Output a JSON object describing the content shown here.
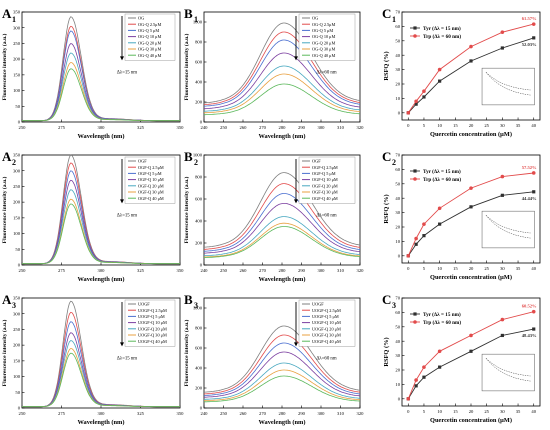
{
  "chart_data": [
    {
      "panel": "A1",
      "panel_label": "A",
      "panel_sub": "1",
      "type": "line",
      "xlabel": "Wavelength (nm)",
      "ylabel": "Fluorescence intensity (a.u.)",
      "xlim": [
        250,
        350
      ],
      "ylim": [
        0,
        350
      ],
      "xticks": [
        250,
        275,
        300,
        325,
        350
      ],
      "yticks": [
        0,
        50,
        100,
        150,
        200,
        250,
        300,
        350
      ],
      "annotation": "Δλ=15 nm",
      "legend_position": "top-right",
      "series": [
        {
          "name": "OG",
          "peak": 330,
          "color": "#7f7f7f"
        },
        {
          "name": "OG-Q 2.5μM",
          "peak": 300,
          "color": "#e24b4b"
        },
        {
          "name": "OG-Q 5 μM",
          "peak": 285,
          "color": "#4a6fd0"
        },
        {
          "name": "OG-Q 10 μM",
          "peak": 245,
          "color": "#7b3fa0"
        },
        {
          "name": "OG-Q 20 μM",
          "peak": 215,
          "color": "#48a8c0"
        },
        {
          "name": "OG-Q 30 μM",
          "peak": 185,
          "color": "#e8a040"
        },
        {
          "name": "OG-Q 40 μM",
          "peak": 165,
          "color": "#5cb85c"
        }
      ]
    },
    {
      "panel": "B1",
      "panel_label": "B",
      "panel_sub": "1",
      "type": "line",
      "xlabel": "Wavelength (nm)",
      "ylabel": "Fluorescence intensity (a.u.)",
      "xlim": [
        240,
        320
      ],
      "ylim": [
        0,
        1100
      ],
      "xticks": [
        240,
        250,
        260,
        270,
        280,
        290,
        300,
        310,
        320
      ],
      "yticks": [
        0,
        200,
        400,
        600,
        800,
        1000
      ],
      "annotation": "Δλ=60 nm",
      "legend_position": "top-right",
      "series": [
        {
          "name": "OG",
          "peak": 990,
          "color": "#7f7f7f"
        },
        {
          "name": "OG-Q 2.5μM",
          "peak": 900,
          "color": "#e24b4b"
        },
        {
          "name": "OG-Q 5 μM",
          "peak": 820,
          "color": "#4a6fd0"
        },
        {
          "name": "OG-Q 10 μM",
          "peak": 690,
          "color": "#7b3fa0"
        },
        {
          "name": "OG-Q 20 μM",
          "peak": 560,
          "color": "#48a8c0"
        },
        {
          "name": "OG-Q 30 μM",
          "peak": 480,
          "color": "#e8a040"
        },
        {
          "name": "OG-Q 40 μM",
          "peak": 380,
          "color": "#5cb85c"
        }
      ]
    },
    {
      "panel": "C1",
      "panel_label": "C",
      "panel_sub": "1",
      "type": "line",
      "xlabel": "Quercetin concentration (μM)",
      "ylabel": "RSFQ (%)",
      "xlim": [
        -2,
        42
      ],
      "ylim": [
        -5,
        70
      ],
      "xticks": [
        0,
        5,
        10,
        15,
        20,
        25,
        30,
        35,
        40
      ],
      "yticks": [
        0,
        10,
        20,
        30,
        40,
        50,
        60,
        70
      ],
      "legend_position": "top-left",
      "x": [
        0,
        2.5,
        5,
        10,
        20,
        30,
        40
      ],
      "series": [
        {
          "name": "Tyr (Δλ = 15 nm)",
          "values": [
            0,
            6,
            11,
            22,
            36,
            45,
            52.03
          ],
          "color": "#303030"
        },
        {
          "name": "Trp (Δλ = 60 nm)",
          "values": [
            0,
            8,
            15,
            30,
            46,
            56,
            61.57
          ],
          "color": "#e24b4b"
        }
      ],
      "end_labels": [
        "61.57%",
        "52.03%"
      ]
    },
    {
      "panel": "A2",
      "panel_label": "A",
      "panel_sub": "2",
      "type": "line",
      "xlabel": "Wavelength (nm)",
      "ylabel": "Fluorescence intensity (a.u.)",
      "xlim": [
        250,
        350
      ],
      "ylim": [
        0,
        350
      ],
      "xticks": [
        250,
        275,
        300,
        325,
        350
      ],
      "yticks": [
        0,
        50,
        100,
        150,
        200,
        250,
        300,
        350
      ],
      "annotation": "Δλ=15 nm",
      "legend_position": "top-right",
      "series": [
        {
          "name": "OGF",
          "peak": 345,
          "color": "#7f7f7f"
        },
        {
          "name": "OGF-Q 2.5μM",
          "peak": 320,
          "color": "#e24b4b"
        },
        {
          "name": "OGF-Q 5 μM",
          "peak": 295,
          "color": "#4a6fd0"
        },
        {
          "name": "OGF-Q 10 μM",
          "peak": 265,
          "color": "#7b3fa0"
        },
        {
          "name": "OGF-Q 20 μM",
          "peak": 235,
          "color": "#48a8c0"
        },
        {
          "name": "OGF-Q 30 μM",
          "peak": 205,
          "color": "#e8a040"
        },
        {
          "name": "OGF-Q 40 μM",
          "peak": 190,
          "color": "#5cb85c"
        }
      ]
    },
    {
      "panel": "B2",
      "panel_label": "B",
      "panel_sub": "2",
      "type": "line",
      "xlabel": "Wavelength (nm)",
      "ylabel": "Fluorescence intensity (a.u.)",
      "xlim": [
        240,
        320
      ],
      "ylim": [
        0,
        1000
      ],
      "xticks": [
        240,
        250,
        260,
        270,
        280,
        290,
        300,
        310,
        320
      ],
      "yticks": [
        0,
        200,
        400,
        600,
        800,
        1000
      ],
      "annotation": "Δλ=60 nm",
      "legend_position": "top-right",
      "series": [
        {
          "name": "OGF",
          "peak": 840,
          "color": "#7f7f7f"
        },
        {
          "name": "OGF-Q 2.5μM",
          "peak": 740,
          "color": "#e24b4b"
        },
        {
          "name": "OGF-Q 5 μM",
          "peak": 650,
          "color": "#4a6fd0"
        },
        {
          "name": "OGF-Q 10 μM",
          "peak": 560,
          "color": "#7b3fa0"
        },
        {
          "name": "OGF-Q 20 μM",
          "peak": 440,
          "color": "#48a8c0"
        },
        {
          "name": "OGF-Q 30 μM",
          "peak": 380,
          "color": "#e8a040"
        },
        {
          "name": "OGF-Q 40 μM",
          "peak": 350,
          "color": "#5cb85c"
        }
      ]
    },
    {
      "panel": "C2",
      "panel_label": "C",
      "panel_sub": "2",
      "type": "line",
      "xlabel": "Quercetin concentration (μM)",
      "ylabel": "RSFQ (%)",
      "xlim": [
        -2,
        42
      ],
      "ylim": [
        -5,
        70
      ],
      "xticks": [
        0,
        5,
        10,
        15,
        20,
        25,
        30,
        35,
        40
      ],
      "yticks": [
        0,
        10,
        20,
        30,
        40,
        50,
        60,
        70
      ],
      "legend_position": "top-left",
      "x": [
        0,
        2.5,
        5,
        10,
        20,
        30,
        40
      ],
      "series": [
        {
          "name": "Tyr (Δλ = 15 nm)",
          "values": [
            0,
            8,
            14,
            22,
            34,
            42,
            44.44
          ],
          "color": "#303030"
        },
        {
          "name": "Trp (Δλ = 60 nm)",
          "values": [
            0,
            12,
            22,
            33,
            47,
            55,
            57.52
          ],
          "color": "#e24b4b"
        }
      ],
      "end_labels": [
        "57.52%",
        "44.44%"
      ]
    },
    {
      "panel": "A3",
      "panel_label": "A",
      "panel_sub": "3",
      "type": "line",
      "xlabel": "Wavelength (nm)",
      "ylabel": "Fluorescence intensity (a.u.)",
      "xlim": [
        250,
        350
      ],
      "ylim": [
        0,
        350
      ],
      "xticks": [
        250,
        275,
        300,
        325,
        350
      ],
      "yticks": [
        0,
        50,
        100,
        150,
        200,
        250,
        300,
        350
      ],
      "annotation": "Δλ=15 nm",
      "legend_position": "top-right",
      "series": [
        {
          "name": "UOGF",
          "peak": 335,
          "color": "#7f7f7f"
        },
        {
          "name": "UOGF-Q 2.5μM",
          "peak": 300,
          "color": "#e24b4b"
        },
        {
          "name": "UOGF-Q 5 μM",
          "peak": 270,
          "color": "#4a6fd0"
        },
        {
          "name": "UOGF-Q 10 μM",
          "peak": 235,
          "color": "#7b3fa0"
        },
        {
          "name": "UOGF-Q 20 μM",
          "peak": 210,
          "color": "#48a8c0"
        },
        {
          "name": "UOGF-Q 30 μM",
          "peak": 185,
          "color": "#e8a040"
        },
        {
          "name": "UOGF-Q 40 μM",
          "peak": 170,
          "color": "#5cb85c"
        }
      ]
    },
    {
      "panel": "B3",
      "panel_label": "B",
      "panel_sub": "3",
      "type": "line",
      "xlabel": "Wavelength (nm)",
      "ylabel": "Fluorescence intensity (a.u.)",
      "xlim": [
        240,
        320
      ],
      "ylim": [
        0,
        1100
      ],
      "xticks": [
        240,
        250,
        260,
        270,
        280,
        290,
        300,
        310,
        320
      ],
      "yticks": [
        0,
        200,
        400,
        600,
        800,
        1000
      ],
      "annotation": "Δλ=60 nm",
      "legend_position": "top-right",
      "series": [
        {
          "name": "UOGF",
          "peak": 820,
          "color": "#7f7f7f"
        },
        {
          "name": "UOGF-Q 2.5μM",
          "peak": 730,
          "color": "#e24b4b"
        },
        {
          "name": "UOGF-Q 5 μM",
          "peak": 650,
          "color": "#4a6fd0"
        },
        {
          "name": "UOGF-Q 10 μM",
          "peak": 560,
          "color": "#7b3fa0"
        },
        {
          "name": "UOGF-Q 20 μM",
          "peak": 450,
          "color": "#48a8c0"
        },
        {
          "name": "UOGF-Q 30 μM",
          "peak": 380,
          "color": "#e8a040"
        },
        {
          "name": "UOGF-Q 40 μM",
          "peak": 320,
          "color": "#5cb85c"
        }
      ]
    },
    {
      "panel": "C3",
      "panel_label": "C",
      "panel_sub": "3",
      "type": "line",
      "xlabel": "Quercetin concentration (μM)",
      "ylabel": "RSFQ (%)",
      "xlim": [
        -2,
        42
      ],
      "ylim": [
        -5,
        70
      ],
      "xticks": [
        0,
        5,
        10,
        15,
        20,
        25,
        30,
        35,
        40
      ],
      "yticks": [
        0,
        10,
        20,
        30,
        40,
        50,
        60,
        70
      ],
      "legend_position": "top-left",
      "x": [
        0,
        2.5,
        5,
        10,
        20,
        30,
        40
      ],
      "series": [
        {
          "name": "Tyr (Δλ = 15 nm)",
          "values": [
            0,
            9,
            15,
            22,
            33,
            44,
            48.43
          ],
          "color": "#303030"
        },
        {
          "name": "Trp (Δλ = 60 nm)",
          "values": [
            0,
            13,
            22,
            33,
            44,
            55,
            60.52
          ],
          "color": "#e24b4b"
        }
      ],
      "end_labels": [
        "60.52%",
        "48.43%"
      ]
    }
  ]
}
